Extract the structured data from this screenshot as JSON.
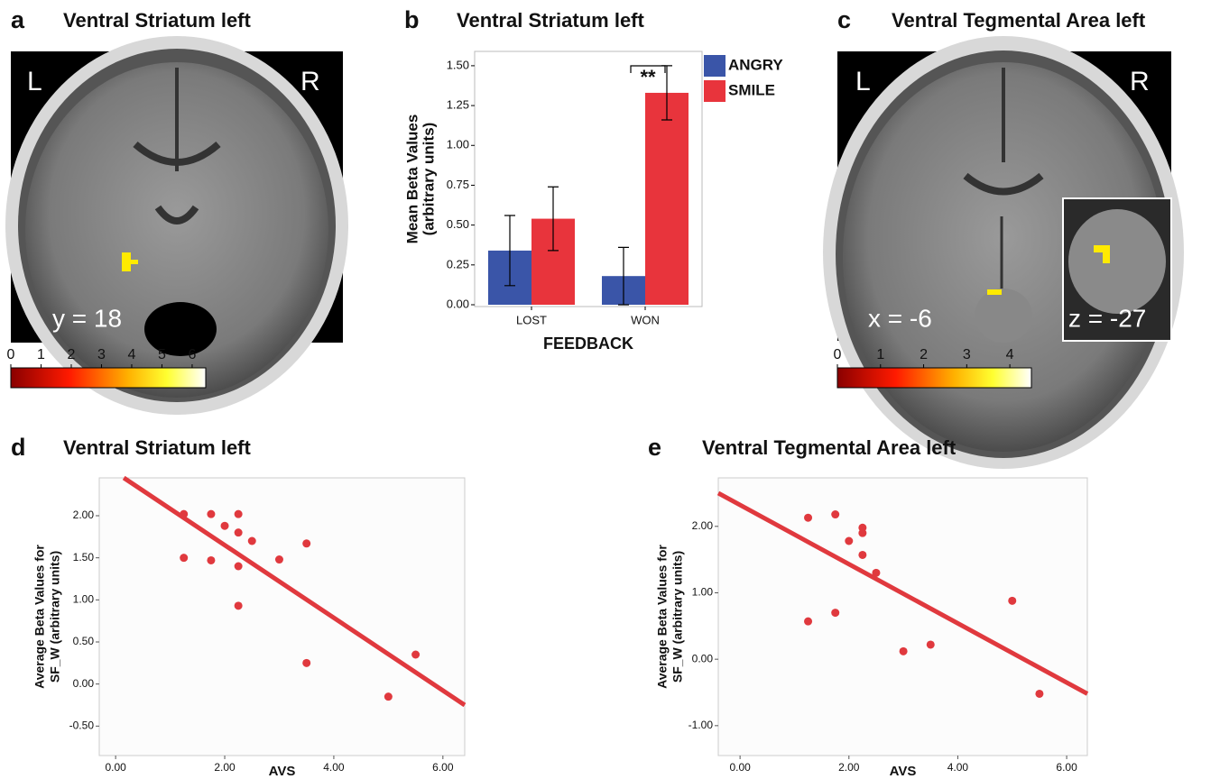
{
  "images": [
    {
      "label": "a",
      "title": "Ventral Striatum left",
      "corner_labels": [
        "L",
        "R"
      ],
      "slice_label": "y = 18",
      "colorbar": {
        "ticks": [
          0,
          1,
          2,
          3,
          4,
          5,
          6
        ],
        "lim": [
          0,
          6.45
        ]
      }
    },
    {
      "label": "c",
      "title": "Ventral Tegmental Area left",
      "corner_labels": [
        "L",
        "R"
      ],
      "slice_label": "x = -6",
      "inset_label": "z = -27",
      "colorbar": {
        "ticks": [
          0,
          1,
          2,
          3,
          4
        ],
        "lim": [
          0,
          4.5
        ]
      }
    }
  ],
  "chart_data": [
    {
      "type": "bar",
      "label": "b",
      "title": "Ventral Striatum left",
      "ylabel": [
        "Mean Beta Values",
        "(arbitrary units)"
      ],
      "xlabel": "FEEDBACK",
      "categories": [
        "LOST",
        "WON"
      ],
      "series": [
        {
          "name": "ANGRY",
          "color": "#3a55a8",
          "values": [
            0.34,
            0.18
          ],
          "errors": [
            0.22,
            0.18
          ]
        },
        {
          "name": "SMILE",
          "color": "#e8343c",
          "values": [
            0.54,
            1.33
          ],
          "errors": [
            0.2,
            0.17
          ]
        }
      ],
      "annotation": "**",
      "ylim": [
        0,
        1.59
      ],
      "yticks": [
        {
          "value": 0,
          "label": "0.00"
        },
        {
          "value": 0.25,
          "label": "0.25"
        },
        {
          "value": 0.5,
          "label": "0.50"
        },
        {
          "value": 0.75,
          "label": "0.75"
        },
        {
          "value": 1,
          "label": "1.00"
        },
        {
          "value": 1.25,
          "label": "1.25"
        },
        {
          "value": 1.5,
          "label": "1.50"
        }
      ]
    },
    {
      "type": "scatter",
      "label": "d",
      "title": "Ventral Striatum left",
      "ylabel": [
        "Average Beta Values for",
        "SF_W (arbitrary units)"
      ],
      "xlabel": "AVS",
      "color": "#e0393e",
      "x": [
        1.25,
        1.25,
        1.75,
        1.75,
        2.0,
        2.25,
        2.25,
        2.5,
        2.25,
        2.25,
        3.0,
        3.5,
        3.5,
        5.0,
        5.5
      ],
      "values": [
        2.02,
        1.5,
        2.02,
        1.47,
        1.88,
        2.02,
        1.8,
        1.7,
        1.4,
        0.93,
        1.48,
        1.67,
        0.25,
        -0.15,
        0.35
      ],
      "fit_line": {
        "x": [
          0.15,
          6.4
        ],
        "y": [
          2.45,
          -0.25
        ]
      },
      "xlim": [
        -0.3,
        6.4
      ],
      "ylim": [
        -0.85,
        2.45
      ],
      "xticks": [
        {
          "value": 0,
          "label": "0.00"
        },
        {
          "value": 2,
          "label": "2.00"
        },
        {
          "value": 4,
          "label": "4.00"
        },
        {
          "value": 6,
          "label": "6.00"
        }
      ],
      "yticks": [
        {
          "value": -0.5,
          "label": "-0.50"
        },
        {
          "value": 0,
          "label": "0.00"
        },
        {
          "value": 0.5,
          "label": "0.50"
        },
        {
          "value": 1,
          "label": "1.00"
        },
        {
          "value": 1.5,
          "label": "1.50"
        },
        {
          "value": 2,
          "label": "2.00"
        }
      ]
    },
    {
      "type": "scatter",
      "label": "e",
      "title": "Ventral Tegmental Area left",
      "ylabel": [
        "Average Beta Values for",
        "SF_W (arbitrary units)"
      ],
      "xlabel": "AVS",
      "color": "#e0393e",
      "x": [
        1.25,
        1.75,
        2.0,
        2.25,
        2.25,
        2.25,
        2.5,
        1.25,
        1.75,
        3.0,
        3.5,
        5.0,
        5.5
      ],
      "values": [
        2.13,
        2.18,
        1.78,
        1.98,
        1.9,
        1.57,
        1.3,
        0.57,
        0.7,
        0.12,
        0.22,
        0.88,
        -0.52
      ],
      "fit_line": {
        "x": [
          -0.4,
          6.38
        ],
        "y": [
          2.5,
          -0.52
        ]
      },
      "xlim": [
        -0.4,
        6.38
      ],
      "ylim": [
        -1.45,
        2.73
      ],
      "xticks": [
        {
          "value": 0,
          "label": "0.00"
        },
        {
          "value": 2,
          "label": "2.00"
        },
        {
          "value": 4,
          "label": "4.00"
        },
        {
          "value": 6,
          "label": "6.00"
        }
      ],
      "yticks": [
        {
          "value": -1,
          "label": "-1.00"
        },
        {
          "value": 0,
          "label": "0.00"
        },
        {
          "value": 1,
          "label": "1.00"
        },
        {
          "value": 2,
          "label": "2.00"
        }
      ]
    }
  ]
}
